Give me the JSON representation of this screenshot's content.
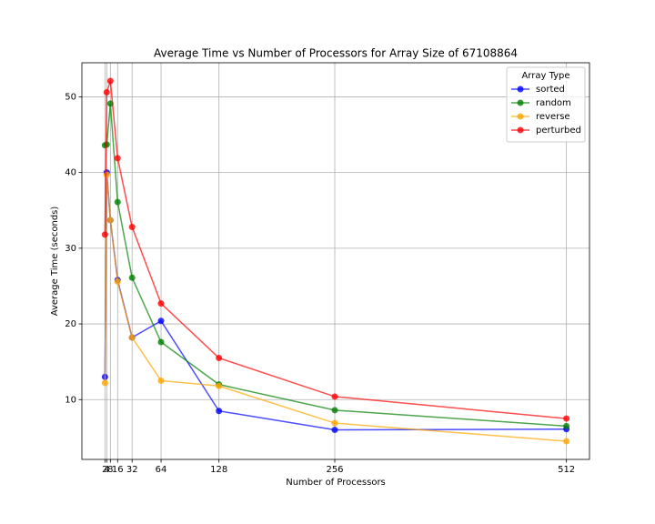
{
  "chart_data": {
    "type": "line",
    "title": "Average Time vs Number of Processors for Array Size of 67108864",
    "x_label": "Number of Processors",
    "y_label": "Average Time (seconds)",
    "x": [
      2,
      4,
      8,
      16,
      32,
      64,
      128,
      256,
      512
    ],
    "series": [
      {
        "name": "sorted",
        "color": "blue",
        "values": [
          13.0,
          40.0,
          33.7,
          25.8,
          18.2,
          20.4,
          8.5,
          6.0,
          6.1
        ]
      },
      {
        "name": "random",
        "color": "green",
        "values": [
          43.6,
          43.7,
          49.1,
          36.1,
          26.1,
          17.6,
          12.0,
          8.6,
          6.5
        ]
      },
      {
        "name": "reverse",
        "color": "orange",
        "values": [
          12.2,
          39.7,
          33.7,
          25.6,
          18.2,
          12.5,
          11.8,
          6.9,
          4.5
        ]
      },
      {
        "name": "perturbed",
        "color": "red",
        "values": [
          31.8,
          50.6,
          52.1,
          41.9,
          32.8,
          22.7,
          15.5,
          10.4,
          7.5
        ]
      }
    ],
    "legend_title": "Array Type",
    "legend": "upper right",
    "xlim": [
      -23.5,
      537.5
    ],
    "xticks": [
      2,
      4,
      8,
      16,
      32,
      64,
      128,
      256,
      512
    ],
    "ylim": [
      2.1,
      54.5
    ],
    "yticks": [
      10,
      20,
      30,
      40,
      50
    ],
    "grid": true
  }
}
